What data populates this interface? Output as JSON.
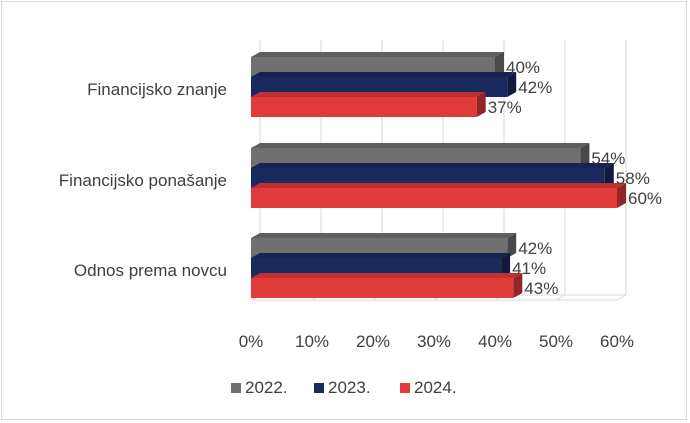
{
  "chart_data": {
    "type": "bar",
    "orientation": "horizontal",
    "style": "3d",
    "categories": [
      "Financijsko znanje",
      "Financijsko ponašanje",
      "Odnos prema novcu"
    ],
    "series": [
      {
        "name": "2022.",
        "color": "#707070",
        "values": [
          40,
          54,
          42
        ],
        "labels": [
          "40%",
          "54%",
          "42%"
        ]
      },
      {
        "name": "2023.",
        "color": "#1b2a5e",
        "values": [
          42,
          58,
          41
        ],
        "labels": [
          "42%",
          "58%",
          "41%"
        ]
      },
      {
        "name": "2024.",
        "color": "#e03a3a",
        "values": [
          37,
          60,
          43
        ],
        "labels": [
          "37%",
          "60%",
          "43%"
        ]
      }
    ],
    "x_ticks": [
      "0%",
      "10%",
      "20%",
      "30%",
      "40%",
      "50%",
      "60%"
    ],
    "xlim": [
      0,
      60
    ],
    "grid": true,
    "legend_position": "bottom"
  }
}
